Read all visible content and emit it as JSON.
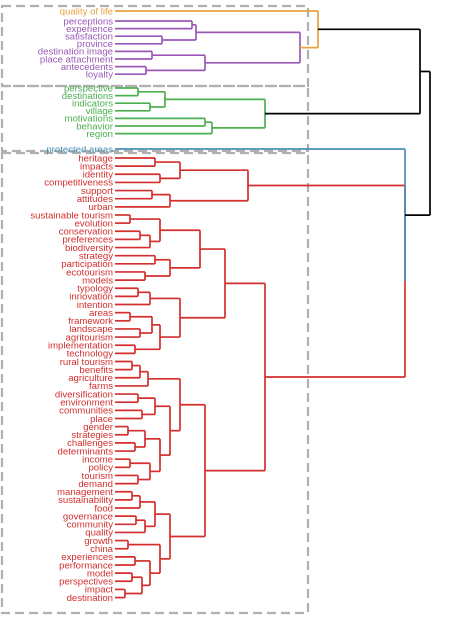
{
  "colors": {
    "orange": "#e8a33d",
    "purple": "#9b59b6",
    "green": "#4caf50",
    "blue": "#4a90b8",
    "red": "#d32f2f",
    "black": "#000000",
    "dash": "#b0b0b0"
  },
  "clusters": [
    {
      "name": "orange-cluster",
      "color": "orange",
      "labels": [
        "quality of life"
      ]
    },
    {
      "name": "purple-cluster",
      "color": "purple",
      "labels": [
        "perceptions",
        "experience",
        "satisfaction",
        "province",
        "destination image",
        "place attachment",
        "antecedents",
        "loyalty"
      ]
    },
    {
      "name": "green-cluster",
      "color": "green",
      "labels": [
        "perspective",
        "destinations",
        "indicators",
        "village",
        "motivations",
        "behavior",
        "region"
      ]
    },
    {
      "name": "blue-cluster",
      "color": "blue",
      "labels": [
        "protected areas"
      ]
    },
    {
      "name": "red-cluster",
      "color": "red",
      "labels": [
        "heritage",
        "impacts",
        "identity",
        "competitiveness",
        "support",
        "attitudes",
        "urban",
        "sustainable tourism",
        "evolution",
        "conservation",
        "preferences",
        "biodiversity",
        "strategy",
        "participation",
        "ecotourism",
        "models",
        "typology",
        "innovation",
        "intention",
        "areas",
        "framework",
        "landscape",
        "agritourism",
        "implementation",
        "technology",
        "rural tourism",
        "benefits",
        "agriculture",
        "farms",
        "diversification",
        "environment",
        "communities",
        "place",
        "gender",
        "strategies",
        "challenges",
        "determinants",
        "income",
        "policy",
        "tourism",
        "demand",
        "management",
        "sustainability",
        "food",
        "governance",
        "community",
        "quality",
        "growth",
        "china",
        "experiences",
        "performance",
        "model",
        "perspectives",
        "impact",
        "destination"
      ]
    }
  ]
}
